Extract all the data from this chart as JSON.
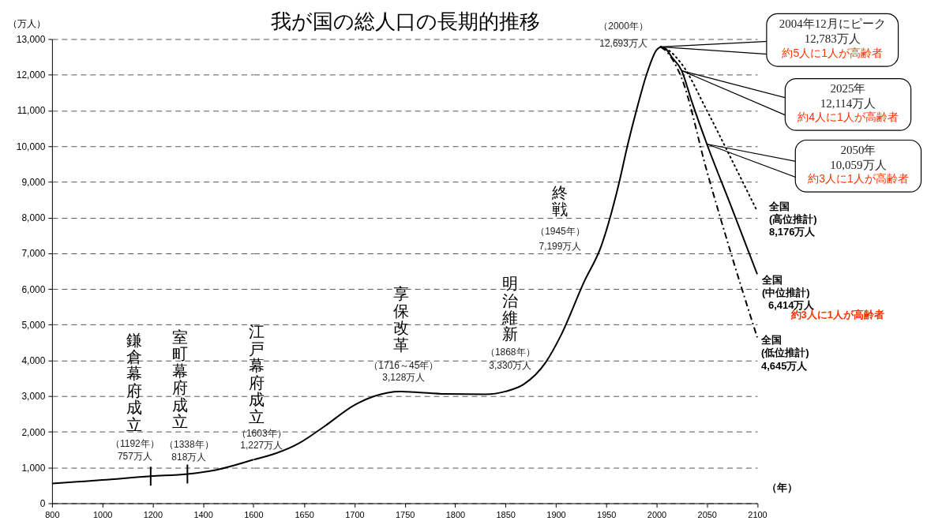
{
  "chart_data": [
    {
      "type": "line",
      "ylabel": "（万人）",
      "xlim": [
        800,
        1600
      ],
      "xticks": [
        800,
        1000,
        1200,
        1400,
        1600
      ],
      "ylim": [
        0,
        13000
      ],
      "yticks": [
        0,
        {
          "value": 1000,
          "label": "1,000"
        },
        {
          "value": 2000,
          "label": "2,000"
        },
        {
          "value": 3000,
          "label": "3,000"
        },
        {
          "value": 4000,
          "label": "4,000"
        },
        {
          "value": 5000,
          "label": "5,000"
        },
        {
          "value": 6000,
          "label": "6,000"
        },
        {
          "value": 7000,
          "label": "7,000"
        },
        {
          "value": 8000,
          "label": "8,000"
        },
        {
          "value": 9000,
          "label": "9,000"
        },
        {
          "value": 10000,
          "label": "10,000"
        },
        {
          "value": 11000,
          "label": "11,000"
        },
        {
          "value": 12000,
          "label": "12,000"
        },
        {
          "value": 13000,
          "label": "13,000"
        }
      ],
      "grid": "y",
      "series": [
        {
          "color": "#000000",
          "line_style": "solid",
          "x": [
            800,
            900,
            1000,
            1192,
            1338,
            1450,
            1600
          ],
          "values": [
            551,
            600,
            650,
            757,
            818,
            930,
            1220
          ]
        }
      ],
      "annotations": [
        {
          "text": "鎌倉幕府成立",
          "x": 1192,
          "y": 757
        },
        {
          "text": "（1192年）\n757万人",
          "x": 1192,
          "y": 757
        },
        {
          "text": "室町幕府成立",
          "x": 1338,
          "y": 818
        },
        {
          "text": "（1338年）\n818万人",
          "x": 1338,
          "y": 818
        }
      ]
    },
    {
      "type": "line",
      "title": "我が国の総人口の長期的推移",
      "xlabel": "（年）",
      "xlim": [
        1600,
        2100
      ],
      "xticks": [
        1650,
        1700,
        1750,
        1800,
        1850,
        1900,
        1950,
        2000,
        2050,
        2100
      ],
      "ylim": [
        0,
        13000
      ],
      "yticks": [
        0,
        1000,
        2000,
        3000,
        4000,
        5000,
        6000,
        7000,
        8000,
        9000,
        10000,
        11000,
        12000,
        13000
      ],
      "grid": "y",
      "tick_labels": "x",
      "series": [
        {
          "color": "#000000",
          "line_style": "solid",
          "x": [
            1600,
            1645,
            1670,
            1700,
            1720,
            1745,
            1760,
            1790,
            1830,
            1850,
            1868,
            1890,
            1905,
            1928,
            1945,
            1963,
            1971,
            1980,
            1990,
            2000,
            2004
          ],
          "values": [
            1220,
            1680,
            2150,
            2750,
            3000,
            3128,
            3110,
            3060,
            3050,
            3130,
            3330,
            3950,
            4700,
            6200,
            7199,
            9000,
            10000,
            11000,
            12000,
            12693,
            12783
          ]
        },
        {
          "name": "全国\n(中位推計)",
          "color": "#000000",
          "line_style": "solid",
          "x": [
            2004,
            2010,
            2015,
            2025,
            2035,
            2050,
            2075,
            2100
          ],
          "values": [
            12783,
            12700,
            12500,
            12114,
            11250,
            10059,
            8250,
            6414
          ],
          "value_labels": [
            null,
            null,
            null,
            null,
            null,
            null,
            null,
            "6,414万人"
          ]
        },
        {
          "name": "全国\n(高位推計)",
          "color": "#000000",
          "line_style": "dotted",
          "x": [
            2004,
            2010,
            2025,
            2050,
            2075,
            2100
          ],
          "values": [
            12783,
            12720,
            12300,
            11000,
            9600,
            8176
          ],
          "value_labels": [
            null,
            null,
            null,
            null,
            null,
            "8,176万人"
          ]
        },
        {
          "name": "全国\n(低位推計)",
          "color": "#000000",
          "line_style": "dashed",
          "x": [
            2004,
            2010,
            2025,
            2050,
            2075,
            2100
          ],
          "values": [
            12783,
            12650,
            11900,
            9300,
            6900,
            4645
          ],
          "value_labels": [
            null,
            null,
            null,
            null,
            null,
            "4,645万人"
          ]
        }
      ],
      "annotations": [
        {
          "text": "江戸幕府成立",
          "x": 1603,
          "y": 1227
        },
        {
          "text": "（1603年）\n1,227万人",
          "x": 1603,
          "y": 1227
        },
        {
          "text": "享保改革",
          "x": 1745,
          "y": 3128
        },
        {
          "text": "（1716～45年）\n3,128万人",
          "x": 1745,
          "y": 3128
        },
        {
          "text": "明治維新",
          "x": 1868,
          "y": 3330
        },
        {
          "text": "（1868年）\n3,330万人",
          "x": 1868,
          "y": 3330
        },
        {
          "text": "終戦",
          "x": 1945,
          "y": 7199
        },
        {
          "text": "（1945年）\n7,199万人",
          "x": 1945,
          "y": 7199
        },
        {
          "text": "（2000年）\n12,693万人",
          "x": 2000,
          "y": 12693
        },
        {
          "text": "2004年12月にピーク\n12,783万人",
          "x": 2004,
          "y": 12783
        },
        {
          "text": "約5人に1人が高齢者",
          "x": 2004,
          "y": 12783
        },
        {
          "text": "2025年\n12,114万人",
          "x": 2025,
          "y": 12114
        },
        {
          "text": "約4人に1人が高齢者",
          "x": 2025,
          "y": 12114
        },
        {
          "text": "2050年\n10,059万人",
          "x": 2050,
          "y": 10059
        },
        {
          "text": "約3人に1人が高齢者",
          "x": 2050,
          "y": 10059
        },
        "約3人に1人が高齢者"
      ]
    }
  ]
}
